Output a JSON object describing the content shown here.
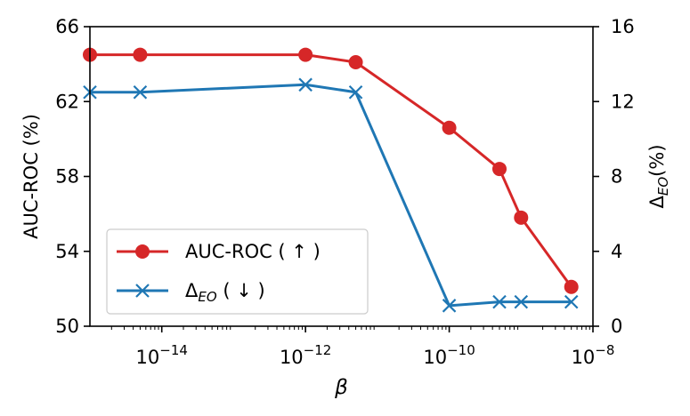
{
  "chart_data": {
    "type": "line",
    "xlabel": "β",
    "xscale": "log",
    "xlim": [
      1e-15,
      1e-08
    ],
    "xticks": [
      {
        "value": 1e-14,
        "base": "10",
        "exp": "−14"
      },
      {
        "value": 1e-12,
        "base": "10",
        "exp": "−12"
      },
      {
        "value": 1e-10,
        "base": "10",
        "exp": "−10"
      },
      {
        "value": 1e-08,
        "base": "10",
        "exp": "−8"
      }
    ],
    "left_axis": {
      "label": "AUC-ROC (%)",
      "ylim": [
        50,
        66
      ],
      "ticks": [
        "50",
        "54",
        "58",
        "62",
        "66"
      ]
    },
    "right_axis": {
      "label_main": "Δ",
      "label_sub": "EO",
      "label_tail": "(%)",
      "ylim": [
        0,
        16
      ],
      "ticks": [
        "0",
        "4",
        "8",
        "12",
        "16"
      ]
    },
    "series": [
      {
        "name": "AUC-ROC ( ↑ )",
        "axis": "left",
        "color": "#d62728",
        "marker": "circle",
        "x": [
          1e-15,
          5e-15,
          1e-12,
          5e-12,
          1e-10,
          5e-10,
          1e-09,
          5e-09
        ],
        "y": [
          64.5,
          64.5,
          64.5,
          64.1,
          60.6,
          58.4,
          55.8,
          52.1
        ]
      },
      {
        "name_main": "Δ",
        "name_sub": "EO",
        "name_tail": " ( ↓ )",
        "axis": "right",
        "color": "#1f77b4",
        "marker": "x",
        "x": [
          1e-15,
          5e-15,
          1e-12,
          5e-12,
          1e-10,
          5e-10,
          1e-09,
          5e-09
        ],
        "y": [
          12.5,
          12.5,
          12.9,
          12.5,
          1.1,
          1.3,
          1.3,
          1.3
        ]
      }
    ],
    "legend": "lower-left",
    "grid": false
  }
}
